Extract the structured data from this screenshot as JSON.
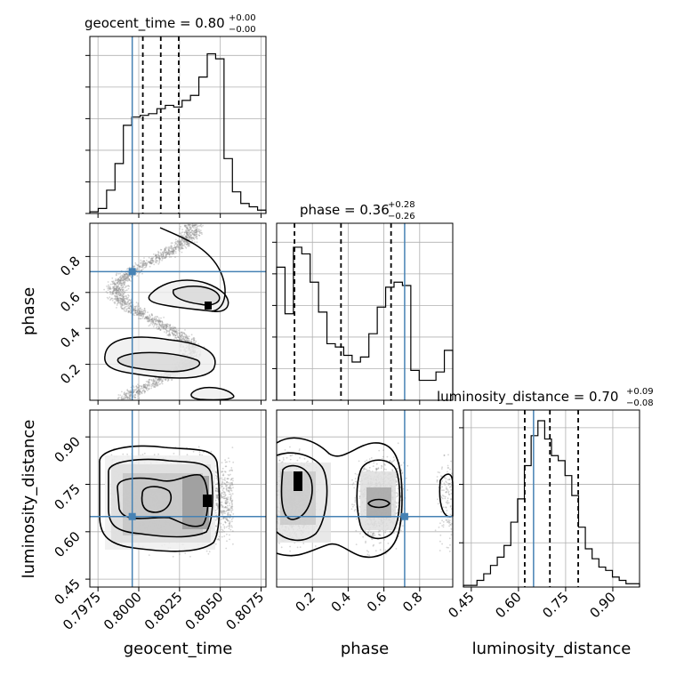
{
  "colors": {
    "truth": "#4682b4",
    "hist": "#000000",
    "grid": "#b0b0b0",
    "quantile": "#000000"
  },
  "chart_data": {
    "type": "corner",
    "parameters": [
      "geocent_time",
      "phase",
      "luminosity_distance"
    ],
    "truths": {
      "geocent_time": 0.7996,
      "phase": 0.716,
      "luminosity_distance": 0.648
    },
    "titles": [
      {
        "param": "geocent_time",
        "prefix": "geocent_time = 0.80",
        "sup": "+0.00",
        "sub": "−0.00"
      },
      {
        "param": "phase",
        "prefix": "phase = 0.36",
        "sup": "+0.28",
        "sub": "−0.26"
      },
      {
        "param": "luminosity_distance",
        "prefix": "luminosity_distance = 0.70",
        "sup": "+0.09",
        "sub": "−0.08"
      }
    ],
    "ranges": {
      "geocent_time": [
        0.797,
        0.8078
      ],
      "phase": [
        0.0,
        0.985
      ],
      "luminosity_distance": [
        0.425,
        0.985
      ]
    },
    "ticks": {
      "geocent_time": [
        0.7975,
        0.8,
        0.8025,
        0.805,
        0.8075
      ],
      "geocent_time_labels": [
        "0.7975",
        "0.8000",
        "0.8025",
        "0.8050",
        "0.8075"
      ],
      "phase": [
        0.2,
        0.4,
        0.6,
        0.8
      ],
      "phase_labels": [
        "0.2",
        "0.4",
        "0.6",
        "0.8"
      ],
      "luminosity_distance": [
        0.45,
        0.6,
        0.75,
        0.9
      ],
      "luminosity_distance_labels": [
        "0.45",
        "0.60",
        "0.75",
        "0.90"
      ]
    },
    "quantiles": {
      "geocent_time": [
        0.80025,
        0.80135,
        0.80245
      ],
      "phase": [
        0.1,
        0.36,
        0.64
      ],
      "luminosity_distance": [
        0.62,
        0.7,
        0.79
      ]
    },
    "hist1d": {
      "geocent_time": [
        0.01,
        0.03,
        0.14,
        0.3,
        0.53,
        0.58,
        0.59,
        0.6,
        0.63,
        0.65,
        0.64,
        0.68,
        0.71,
        0.82,
        0.96,
        0.93,
        0.33,
        0.13,
        0.06,
        0.04,
        0.02
      ],
      "phase": [
        0.8,
        0.52,
        0.92,
        0.88,
        0.71,
        0.53,
        0.34,
        0.32,
        0.27,
        0.23,
        0.26,
        0.4,
        0.56,
        0.68,
        0.71,
        0.69,
        0.18,
        0.12,
        0.12,
        0.17,
        0.3
      ],
      "luminosity_distance": [
        0.01,
        0.01,
        0.04,
        0.08,
        0.13,
        0.18,
        0.25,
        0.39,
        0.53,
        0.73,
        0.91,
        1.0,
        0.89,
        0.79,
        0.76,
        0.67,
        0.55,
        0.36,
        0.23,
        0.17,
        0.12,
        0.1,
        0.06,
        0.04,
        0.02,
        0.02
      ]
    },
    "axis_labels": {
      "geocent_time": "geocent_time",
      "phase": "phase",
      "luminosity_distance": "luminosity_distance"
    },
    "grid": true
  }
}
